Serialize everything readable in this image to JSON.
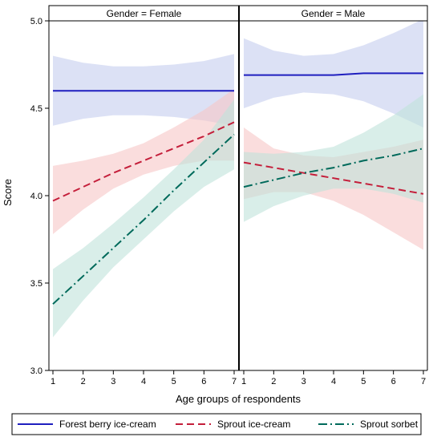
{
  "chart_data": {
    "type": "line",
    "ylabel": "Score",
    "xlabel": "Age groups of respondents",
    "x": [
      1,
      2,
      3,
      4,
      5,
      6,
      7
    ],
    "xlim": [
      1,
      7
    ],
    "ylim": [
      3.0,
      5.0
    ],
    "y_ticks": [
      "3.0",
      "3.5",
      "4.0",
      "4.5",
      "5.0"
    ],
    "x_ticks": [
      "1",
      "2",
      "3",
      "4",
      "5",
      "6",
      "7"
    ],
    "grid": false,
    "legend_position": "bottom",
    "panels": [
      {
        "title": "Gender = Female",
        "series": [
          {
            "name": "Forest berry ice-cream",
            "color": "#1f1fbf",
            "dash": "solid",
            "band_color": "#c5cdee",
            "values": [
              4.6,
              4.6,
              4.6,
              4.6,
              4.6,
              4.6,
              4.6
            ],
            "lower": [
              4.4,
              4.44,
              4.46,
              4.46,
              4.45,
              4.43,
              4.4
            ],
            "upper": [
              4.8,
              4.76,
              4.74,
              4.74,
              4.75,
              4.77,
              4.81
            ]
          },
          {
            "name": "Sprout ice-cream",
            "color": "#c41e3a",
            "dash": "dashed",
            "band_color": "#f6c6c6",
            "values": [
              3.97,
              4.05,
              4.13,
              4.2,
              4.27,
              4.34,
              4.42
            ],
            "lower": [
              3.78,
              3.92,
              4.04,
              4.12,
              4.17,
              4.2,
              4.2
            ],
            "upper": [
              4.17,
              4.2,
              4.24,
              4.3,
              4.39,
              4.49,
              4.61
            ]
          },
          {
            "name": "Sprout sorbet",
            "color": "#006a5b",
            "dash": "dashdot",
            "band_color": "#bfe3da",
            "values": [
              3.38,
              3.54,
              3.7,
              3.86,
              4.03,
              4.19,
              4.35
            ],
            "lower": [
              3.19,
              3.4,
              3.59,
              3.75,
              3.91,
              4.05,
              4.15
            ],
            "upper": [
              3.58,
              3.7,
              3.84,
              3.99,
              4.15,
              4.32,
              4.55
            ]
          }
        ]
      },
      {
        "title": "Gender = Male",
        "series": [
          {
            "name": "Forest berry ice-cream",
            "color": "#1f1fbf",
            "dash": "solid",
            "band_color": "#c5cdee",
            "values": [
              4.69,
              4.69,
              4.69,
              4.69,
              4.7,
              4.7,
              4.7
            ],
            "lower": [
              4.5,
              4.56,
              4.59,
              4.58,
              4.54,
              4.47,
              4.39
            ],
            "upper": [
              4.9,
              4.83,
              4.8,
              4.81,
              4.86,
              4.93,
              5.01
            ]
          },
          {
            "name": "Sprout ice-cream",
            "color": "#c41e3a",
            "dash": "dashed",
            "band_color": "#f6c6c6",
            "values": [
              4.19,
              4.16,
              4.13,
              4.1,
              4.07,
              4.04,
              4.01
            ],
            "lower": [
              3.98,
              4.02,
              4.02,
              3.97,
              3.89,
              3.79,
              3.69
            ],
            "upper": [
              4.39,
              4.27,
              4.23,
              4.22,
              4.25,
              4.28,
              4.32
            ]
          },
          {
            "name": "Sprout sorbet",
            "color": "#006a5b",
            "dash": "dashdot",
            "band_color": "#bfe3da",
            "values": [
              4.05,
              4.09,
              4.13,
              4.16,
              4.2,
              4.23,
              4.27
            ],
            "lower": [
              3.85,
              3.94,
              4.0,
              4.04,
              4.04,
              4.01,
              3.96
            ],
            "upper": [
              4.25,
              4.24,
              4.25,
              4.28,
              4.36,
              4.46,
              4.58
            ]
          }
        ]
      }
    ]
  }
}
